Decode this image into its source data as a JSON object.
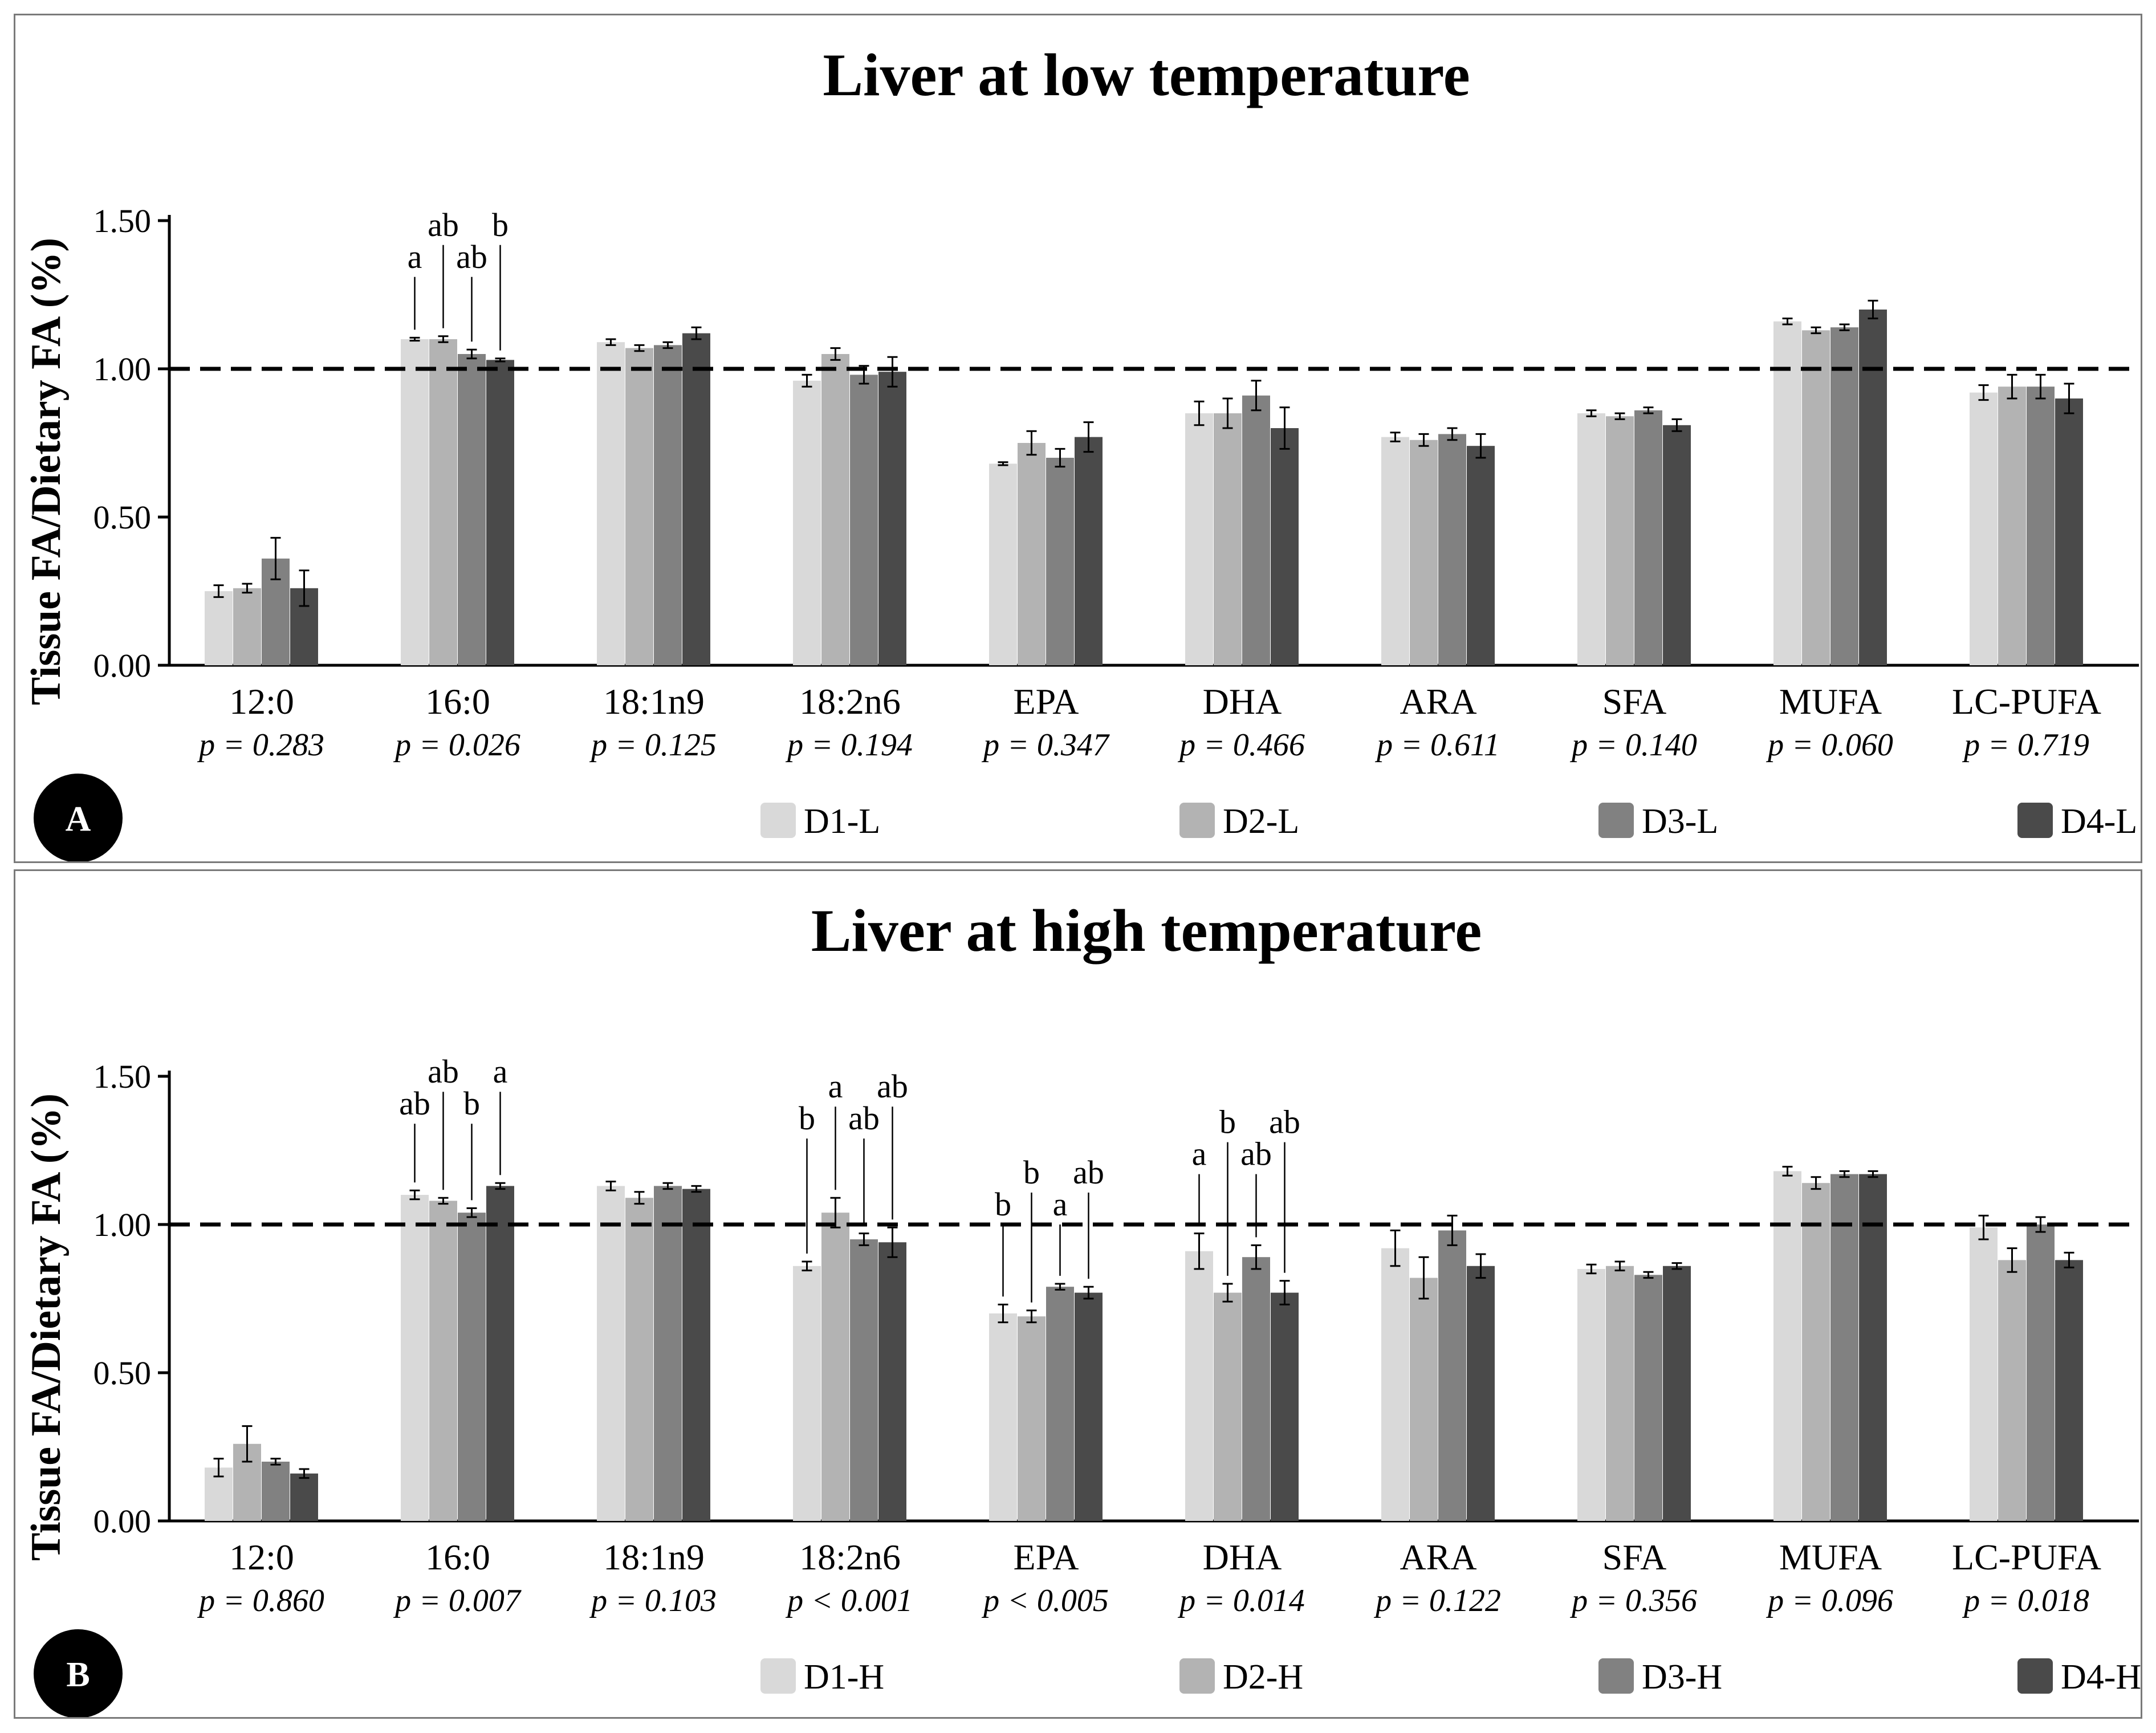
{
  "colors": {
    "series": [
      "#d9d9d9",
      "#b3b3b3",
      "#818181",
      "#4a4a4a"
    ],
    "axis": "#000000",
    "badge": "#000000"
  },
  "chart_data": [
    {
      "type": "bar",
      "panel_label": "A",
      "title": "Liver at low temperature",
      "ylabel": "Tissue FA/Dietary FA (%)",
      "xlabel": "",
      "ylim": [
        0,
        1.5
      ],
      "yticks": [
        "0.00",
        "0.50",
        "1.00",
        "1.50"
      ],
      "reference_line": 1.0,
      "categories": [
        "12:0",
        "16:0",
        "18:1n9",
        "18:2n6",
        "EPA",
        "DHA",
        "ARA",
        "SFA",
        "MUFA",
        "LC-PUFA"
      ],
      "p_values": [
        "p = 0.283",
        "p = 0.026",
        "p = 0.125",
        "p = 0.194",
        "p = 0.347",
        "p = 0.466",
        "p = 0.611",
        "p = 0.140",
        "p = 0.060",
        "p = 0.719"
      ],
      "series": [
        {
          "name": "D1-L",
          "values": [
            0.25,
            1.1,
            1.09,
            0.96,
            0.68,
            0.85,
            0.77,
            0.85,
            1.16,
            0.92
          ],
          "errors": [
            0.02,
            0.005,
            0.01,
            0.02,
            0.005,
            0.04,
            0.015,
            0.01,
            0.01,
            0.025
          ]
        },
        {
          "name": "D2-L",
          "values": [
            0.26,
            1.1,
            1.07,
            1.05,
            0.75,
            0.85,
            0.76,
            0.84,
            1.13,
            0.94
          ],
          "errors": [
            0.015,
            0.01,
            0.01,
            0.02,
            0.04,
            0.05,
            0.02,
            0.01,
            0.01,
            0.04
          ]
        },
        {
          "name": "D3-L",
          "values": [
            0.36,
            1.05,
            1.08,
            0.98,
            0.7,
            0.91,
            0.78,
            0.86,
            1.14,
            0.94
          ],
          "errors": [
            0.07,
            0.015,
            0.01,
            0.03,
            0.03,
            0.05,
            0.02,
            0.01,
            0.01,
            0.04
          ]
        },
        {
          "name": "D4-L",
          "values": [
            0.26,
            1.03,
            1.12,
            0.99,
            0.77,
            0.8,
            0.74,
            0.81,
            1.2,
            0.9
          ],
          "errors": [
            0.06,
            0.005,
            0.02,
            0.05,
            0.05,
            0.07,
            0.04,
            0.02,
            0.03,
            0.05
          ]
        }
      ],
      "annotations": [
        {
          "category": "16:0",
          "letters": [
            "a",
            "ab",
            "ab",
            "b"
          ]
        }
      ]
    },
    {
      "type": "bar",
      "panel_label": "B",
      "title": "Liver at high temperature",
      "ylabel": "Tissue FA/Dietary FA (%)",
      "xlabel": "",
      "ylim": [
        0,
        1.5
      ],
      "yticks": [
        "0.00",
        "0.50",
        "1.00",
        "1.50"
      ],
      "reference_line": 1.0,
      "categories": [
        "12:0",
        "16:0",
        "18:1n9",
        "18:2n6",
        "EPA",
        "DHA",
        "ARA",
        "SFA",
        "MUFA",
        "LC-PUFA"
      ],
      "p_values": [
        "p = 0.860",
        "p = 0.007",
        "p = 0.103",
        "p < 0.001",
        "p < 0.005",
        "p = 0.014",
        "p = 0.122",
        "p = 0.356",
        "p = 0.096",
        "p = 0.018"
      ],
      "series": [
        {
          "name": "D1-H",
          "values": [
            0.18,
            1.1,
            1.13,
            0.86,
            0.7,
            0.91,
            0.92,
            0.85,
            1.18,
            0.99
          ],
          "errors": [
            0.03,
            0.015,
            0.015,
            0.015,
            0.03,
            0.06,
            0.06,
            0.015,
            0.015,
            0.04
          ]
        },
        {
          "name": "D2-H",
          "values": [
            0.26,
            1.08,
            1.09,
            1.04,
            0.69,
            0.77,
            0.82,
            0.86,
            1.14,
            0.88
          ],
          "errors": [
            0.06,
            0.01,
            0.02,
            0.05,
            0.02,
            0.03,
            0.07,
            0.015,
            0.02,
            0.04
          ]
        },
        {
          "name": "D3-H",
          "values": [
            0.2,
            1.04,
            1.13,
            0.95,
            0.79,
            0.89,
            0.98,
            0.83,
            1.17,
            1.0
          ],
          "errors": [
            0.01,
            0.015,
            0.01,
            0.02,
            0.01,
            0.04,
            0.05,
            0.01,
            0.01,
            0.025
          ]
        },
        {
          "name": "D4-H",
          "values": [
            0.16,
            1.13,
            1.12,
            0.94,
            0.77,
            0.77,
            0.86,
            0.86,
            1.17,
            0.88
          ],
          "errors": [
            0.015,
            0.01,
            0.01,
            0.05,
            0.02,
            0.04,
            0.04,
            0.01,
            0.01,
            0.025
          ]
        }
      ],
      "annotations": [
        {
          "category": "16:0",
          "letters": [
            "ab",
            "ab",
            "b",
            "a"
          ]
        },
        {
          "category": "18:2n6",
          "letters": [
            "b",
            "a",
            "ab",
            "ab"
          ]
        },
        {
          "category": "EPA",
          "letters": [
            "b",
            "b",
            "a",
            "ab"
          ]
        },
        {
          "category": "DHA",
          "letters": [
            "a",
            "b",
            "ab",
            "ab"
          ]
        }
      ]
    }
  ]
}
